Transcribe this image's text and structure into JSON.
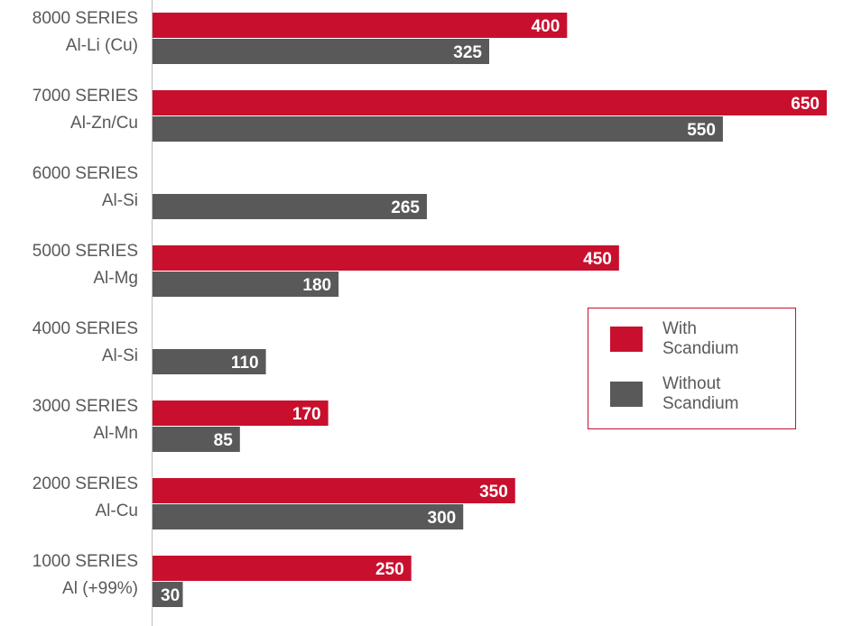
{
  "chart_data": {
    "type": "bar",
    "orientation": "horizontal",
    "categories": [
      [
        "8000 SERIES",
        "Al-Li (Cu)"
      ],
      [
        "7000 SERIES",
        "Al-Zn/Cu"
      ],
      [
        "6000 SERIES",
        "Al-Si"
      ],
      [
        "5000 SERIES",
        "Al-Mg"
      ],
      [
        "4000 SERIES",
        "Al-Si"
      ],
      [
        "3000 SERIES",
        "Al-Mn"
      ],
      [
        "2000 SERIES",
        "Al-Cu"
      ],
      [
        "1000 SERIES",
        "Al (+99%)"
      ]
    ],
    "series": [
      {
        "name": "With Scandium",
        "color": "#c8102e",
        "values": [
          400,
          650,
          null,
          450,
          null,
          170,
          350,
          250
        ]
      },
      {
        "name": "Without Scandium",
        "color": "#595959",
        "values": [
          325,
          550,
          265,
          180,
          110,
          85,
          300,
          30
        ]
      }
    ],
    "xlim": [
      0,
      650
    ],
    "grid": false,
    "legend": "right"
  },
  "legend": {
    "with_line1": "With",
    "with_line2": "Scandium",
    "without_line1": "Without",
    "without_line2": "Scandium"
  }
}
